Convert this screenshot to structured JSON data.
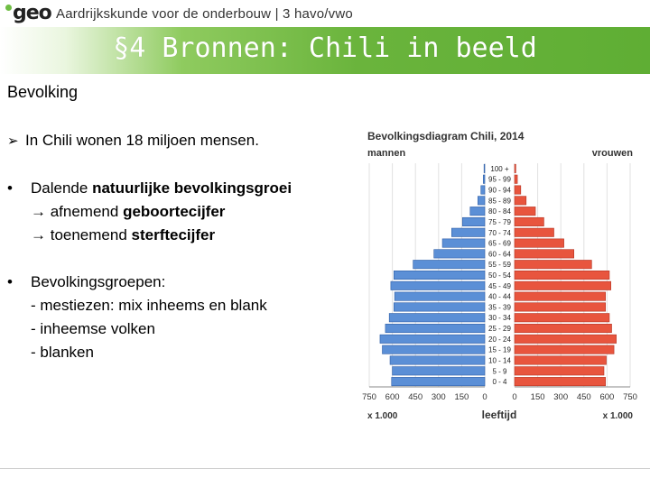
{
  "header": {
    "logo": "geo",
    "course": "Aardrijkskunde voor de onderbouw | 3 havo/vwo"
  },
  "banner": {
    "title": "§4 Bronnen: Chili in beeld"
  },
  "section_title": "Bevolking",
  "bullets": {
    "b1": "In Chili wonen 18 miljoen mensen.",
    "b2": {
      "pre": "Dalende ",
      "bold": "natuurlijke bevolkingsgroei",
      "l2_pre": "→ afnemend ",
      "l2_bold": "geboortecijfer",
      "l3_pre": "→ toenemend ",
      "l3_bold": "sterftecijfer"
    },
    "b3": {
      "l1": "Bevolkingsgroepen:",
      "l2": "- mestiezen: mix inheems en blank",
      "l3": "- inheemse volken",
      "l4": "- blanken"
    }
  },
  "chart_data": {
    "type": "bar",
    "title": "Bevolkingsdiagram Chili, 2014",
    "left_label": "mannen",
    "right_label": "vrouwen",
    "xlabel": "leeftijd",
    "unit_left": "x 1.000",
    "unit_right": "x 1.000",
    "xlim": [
      0,
      750
    ],
    "x_ticks_left": [
      "750",
      "600",
      "450",
      "300",
      "150",
      "0"
    ],
    "x_ticks_right": [
      "0",
      "150",
      "300",
      "450",
      "600",
      "750"
    ],
    "categories": [
      "0 - 4",
      "5 - 9",
      "10 - 14",
      "15 - 19",
      "20 - 24",
      "25 - 29",
      "30 - 34",
      "35 - 39",
      "40 - 44",
      "45 - 49",
      "50 - 54",
      "55 - 59",
      "60 - 64",
      "65 - 69",
      "70 - 74",
      "75 - 79",
      "80 - 84",
      "85 - 89",
      "90 - 94",
      "95 - 99",
      "100 +"
    ],
    "series": [
      {
        "name": "mannen",
        "color": "#5b8fd6",
        "values": [
          605,
          600,
          615,
          665,
          680,
          645,
          620,
          590,
          585,
          610,
          590,
          465,
          330,
          275,
          215,
          145,
          95,
          45,
          25,
          10,
          5
        ]
      },
      {
        "name": "vrouwen",
        "color": "#e8553e",
        "values": [
          590,
          580,
          595,
          645,
          660,
          630,
          615,
          590,
          590,
          625,
          615,
          500,
          385,
          320,
          255,
          190,
          135,
          75,
          40,
          18,
          8
        ]
      }
    ]
  }
}
